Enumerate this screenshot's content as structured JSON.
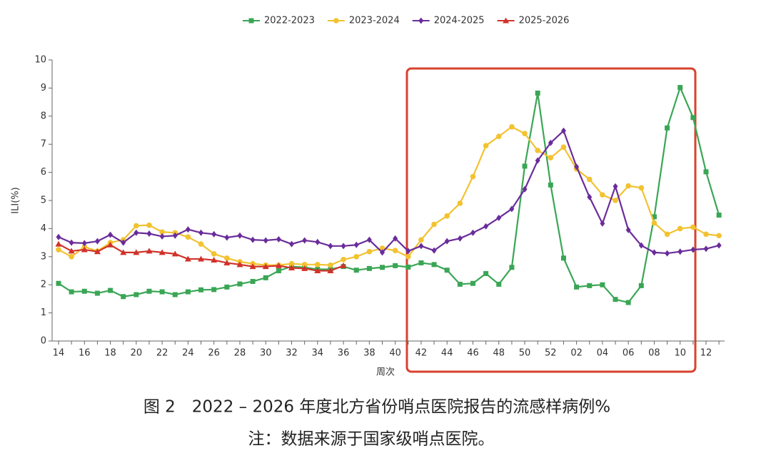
{
  "chart_data": {
    "type": "line",
    "y_label": "ILI(%)",
    "x_label": "周次",
    "caption": "图 2　2022 – 2026 年度北方省份哨点医院报告的流感样病例%",
    "note": "注：数据来源于国家级哨点医院。",
    "categories": [
      "14",
      null,
      "16",
      null,
      "18",
      null,
      "20",
      null,
      "22",
      null,
      "24",
      null,
      "26",
      null,
      "28",
      null,
      "30",
      null,
      "32",
      null,
      "34",
      null,
      "36",
      null,
      "38",
      null,
      "40",
      null,
      "42",
      null,
      "44",
      null,
      "46",
      null,
      "48",
      null,
      "50",
      null,
      "52",
      null,
      "02",
      null,
      "04",
      null,
      "06",
      null,
      "08",
      null,
      "10",
      null,
      "12",
      null
    ],
    "ylim": [
      0,
      10
    ],
    "yticks": [
      0,
      1,
      2,
      3,
      4,
      5,
      6,
      7,
      8,
      9,
      10
    ],
    "legend": "top",
    "series": [
      {
        "name": "2022-2023",
        "color": "#3aa655",
        "marker": "square",
        "values": [
          2.05,
          1.75,
          1.77,
          1.7,
          1.8,
          1.58,
          1.65,
          1.77,
          1.75,
          1.65,
          1.75,
          1.82,
          1.83,
          1.92,
          2.03,
          2.12,
          2.25,
          2.5,
          2.65,
          2.62,
          2.55,
          2.55,
          2.65,
          2.52,
          2.58,
          2.62,
          2.68,
          2.63,
          2.78,
          2.72,
          2.52,
          2.02,
          2.05,
          2.4,
          2.02,
          2.62,
          6.22,
          8.82,
          5.55,
          2.95,
          1.92,
          1.97,
          2.0,
          1.48,
          1.37,
          1.97,
          4.42,
          7.58,
          9.02,
          7.95,
          6.02,
          4.48
        ]
      },
      {
        "name": "2023-2024",
        "color": "#f2c230",
        "marker": "circle",
        "values": [
          3.25,
          3.0,
          3.35,
          3.2,
          3.5,
          3.6,
          4.1,
          4.12,
          3.88,
          3.85,
          3.7,
          3.45,
          3.1,
          2.95,
          2.82,
          2.75,
          2.7,
          2.7,
          2.75,
          2.72,
          2.72,
          2.7,
          2.9,
          3.0,
          3.18,
          3.3,
          3.22,
          3.0,
          3.6,
          4.15,
          4.45,
          4.9,
          5.85,
          6.95,
          7.28,
          7.62,
          7.38,
          6.78,
          6.52,
          6.9,
          6.12,
          5.75,
          5.2,
          5.0,
          5.52,
          5.45,
          4.2,
          3.8,
          4.0,
          4.05,
          3.8,
          3.75
        ]
      },
      {
        "name": "2024-2025",
        "color": "#6a2c9a",
        "marker": "diamond",
        "values": [
          3.7,
          3.5,
          3.48,
          3.55,
          3.78,
          3.5,
          3.85,
          3.82,
          3.72,
          3.75,
          3.97,
          3.85,
          3.8,
          3.68,
          3.75,
          3.6,
          3.58,
          3.62,
          3.45,
          3.58,
          3.52,
          3.38,
          3.38,
          3.42,
          3.6,
          3.15,
          3.65,
          3.2,
          3.38,
          3.22,
          3.55,
          3.65,
          3.85,
          4.08,
          4.38,
          4.7,
          5.4,
          6.42,
          7.05,
          7.48,
          6.2,
          5.12,
          4.18,
          5.5,
          3.95,
          3.4,
          3.15,
          3.12,
          3.18,
          3.25,
          3.28,
          3.4
        ]
      },
      {
        "name": "2025-2026",
        "color": "#d0322a",
        "marker": "triangle",
        "values": [
          3.45,
          3.2,
          3.25,
          3.18,
          3.42,
          3.15,
          3.15,
          3.2,
          3.15,
          3.1,
          2.92,
          2.92,
          2.88,
          2.78,
          2.72,
          2.65,
          2.65,
          2.68,
          2.6,
          2.58,
          2.5,
          2.5,
          2.68,
          null,
          null,
          null,
          null,
          null,
          null,
          null,
          null,
          null,
          null,
          null,
          null,
          null,
          null,
          null,
          null,
          null,
          null,
          null,
          null,
          null,
          null,
          null,
          null,
          null,
          null,
          null,
          null,
          null
        ]
      }
    ]
  }
}
